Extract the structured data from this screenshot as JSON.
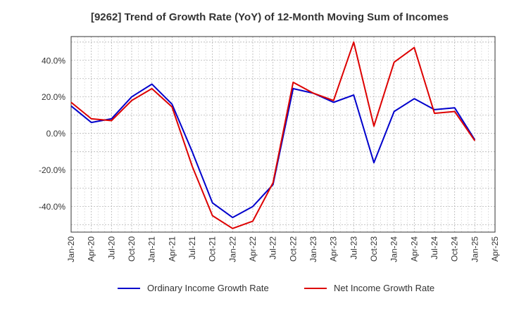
{
  "chart_data": {
    "type": "line",
    "title": "[9262]  Trend of Growth Rate (YoY) of 12-Month Moving Sum of Incomes",
    "xlabel": "",
    "ylabel": "",
    "x": [
      "Jan-20",
      "Apr-20",
      "Jul-20",
      "Oct-20",
      "Jan-21",
      "Apr-21",
      "Jul-21",
      "Oct-21",
      "Jan-22",
      "Apr-22",
      "Jul-22",
      "Oct-22",
      "Jan-23",
      "Apr-23",
      "Jul-23",
      "Oct-23",
      "Jan-24",
      "Apr-24",
      "Jul-24",
      "Oct-24",
      "Jan-25"
    ],
    "x_ticks": [
      "Jan-20",
      "Apr-20",
      "Jul-20",
      "Oct-20",
      "Jan-21",
      "Apr-21",
      "Jul-21",
      "Oct-21",
      "Jan-22",
      "Apr-22",
      "Jul-22",
      "Oct-22",
      "Jan-23",
      "Apr-23",
      "Jul-23",
      "Oct-23",
      "Jan-24",
      "Apr-24",
      "Jul-24",
      "Oct-24",
      "Jan-25",
      "Apr-25"
    ],
    "y_ticks": [
      -40,
      -20,
      0,
      20,
      40
    ],
    "y_tick_labels": [
      "-40.0%",
      "-20.0%",
      "0.0%",
      "20.0%",
      "40.0%"
    ],
    "ylim": [
      -54,
      53
    ],
    "grid": true,
    "legend_placement": "bottom",
    "series": [
      {
        "name": "Ordinary Income Growth Rate",
        "color": "#0000cc",
        "values": [
          15,
          6,
          8,
          20,
          27,
          16,
          -10,
          -38,
          -46,
          -40,
          -28,
          24.5,
          22,
          17,
          21,
          -16,
          12,
          19,
          13,
          14,
          -3.5
        ]
      },
      {
        "name": "Net Income Growth Rate",
        "color": "#dd0000",
        "values": [
          17,
          8,
          7,
          18,
          24.5,
          14.5,
          -18,
          -45,
          -52,
          -48,
          -27,
          28,
          22,
          18,
          50,
          4,
          39,
          47,
          11,
          12,
          -4
        ]
      }
    ]
  }
}
